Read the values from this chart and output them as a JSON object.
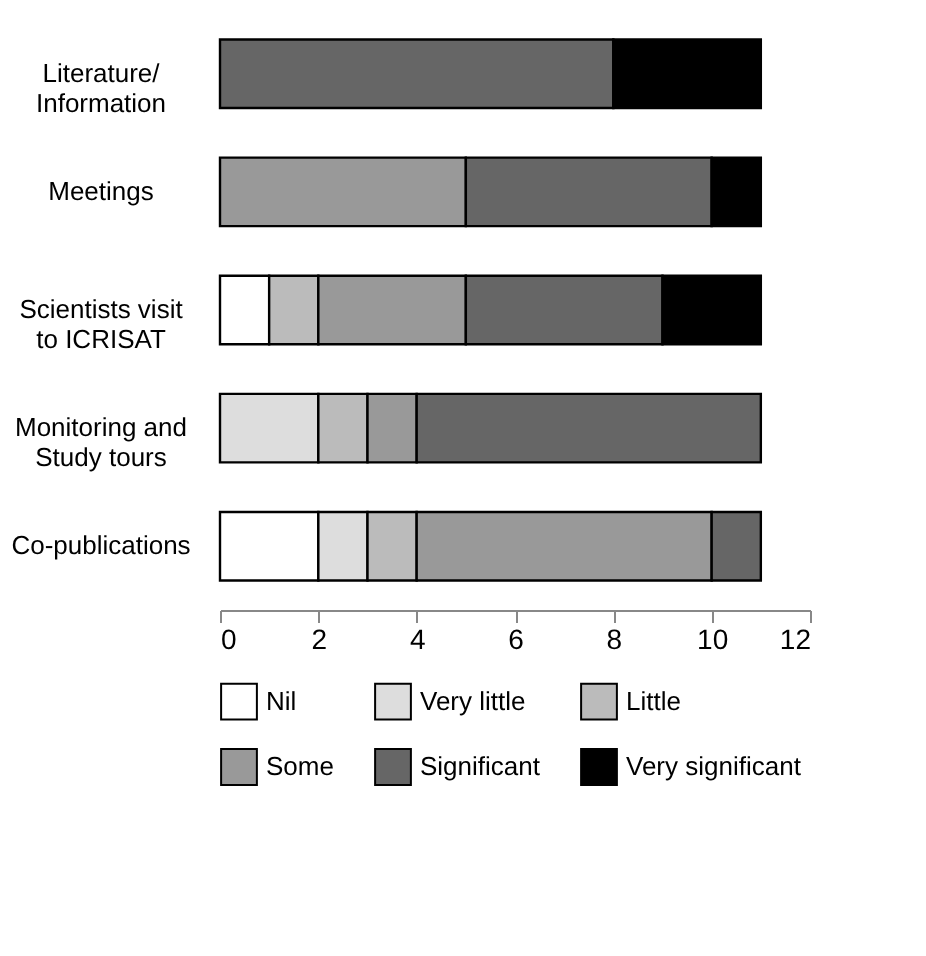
{
  "chart_data": {
    "type": "bar",
    "orientation": "horizontal",
    "stacked": true,
    "categories": [
      "Literature/\nInformation",
      "Meetings",
      "Scientists visit\nto ICRISAT",
      "Monitoring and\nStudy tours",
      "Co-publications"
    ],
    "series": [
      {
        "name": "Nil",
        "color": "#ffffff",
        "values": [
          null,
          null,
          1,
          null,
          2
        ]
      },
      {
        "name": "Very little",
        "color": "#dddddd",
        "values": [
          null,
          null,
          null,
          2,
          1
        ]
      },
      {
        "name": "Little",
        "color": "#bbbbbb",
        "values": [
          null,
          null,
          1,
          1,
          1
        ]
      },
      {
        "name": "Some",
        "color": "#999999",
        "values": [
          null,
          5,
          3,
          1,
          6
        ]
      },
      {
        "name": "Significant",
        "color": "#666666",
        "values": [
          8,
          5,
          4,
          7,
          1
        ]
      },
      {
        "name": "Very significant",
        "color": "#000000",
        "values": [
          3,
          1,
          2,
          null,
          null
        ]
      }
    ],
    "xlim": [
      0,
      12
    ],
    "xticks": [
      0,
      2,
      4,
      6,
      8,
      10,
      12
    ],
    "grid": false,
    "legend": "bottom"
  }
}
